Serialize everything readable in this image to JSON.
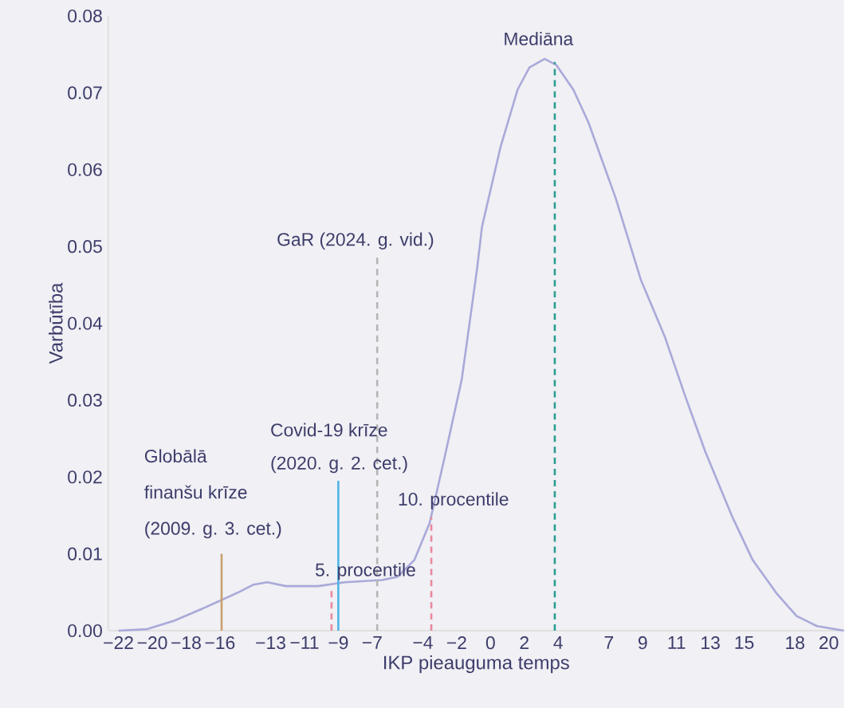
{
  "chart_data": {
    "type": "line",
    "xlabel": "IKP pieauguma temps",
    "ylabel": "Varbūtība",
    "xlim": [
      -22.6,
      20.9
    ],
    "ylim": [
      0,
      0.08
    ],
    "xticks": [
      {
        "value": -22,
        "label": "−22"
      },
      {
        "value": -20,
        "label": "−20"
      },
      {
        "value": -18,
        "label": "−18"
      },
      {
        "value": -16,
        "label": "−16"
      },
      {
        "value": -13,
        "label": "−13"
      },
      {
        "value": -11,
        "label": "−11"
      },
      {
        "value": -9,
        "label": "−9"
      },
      {
        "value": -7,
        "label": "−7"
      },
      {
        "value": -4,
        "label": "−4"
      },
      {
        "value": -2,
        "label": "−2"
      },
      0,
      2,
      4,
      7,
      9,
      11,
      13,
      15,
      18,
      20
    ],
    "yticks": [
      {
        "value": 0,
        "label": "0.00"
      },
      {
        "value": 0.01,
        "label": "0.01"
      },
      {
        "value": 0.02,
        "label": "0.02"
      },
      {
        "value": 0.03,
        "label": "0.03"
      },
      {
        "value": 0.04,
        "label": "0.04"
      },
      {
        "value": 0.05,
        "label": "0.05"
      },
      {
        "value": 0.06,
        "label": "0.06"
      },
      {
        "value": 0.07,
        "label": "0.07"
      },
      {
        "value": 0.08,
        "label": "0.08"
      }
    ],
    "grid": false,
    "marker": "none",
    "series": [
      {
        "color": "#a9a9d9",
        "line_style": "solid",
        "x": [
          -22,
          -20.3,
          -18.7,
          -17.1,
          -15.9,
          -14.9,
          -14.0,
          -13.2,
          -12.1,
          -10.2,
          -8.6,
          -6.4,
          -5.5,
          -4.5,
          -3.6,
          -2.7,
          -1.7,
          -0.8,
          -0.5,
          0.6,
          1.6,
          2.3,
          3.2,
          3.9,
          4.9,
          5.8,
          7.4,
          8.9,
          10.3,
          11.5,
          12.7,
          14.3,
          15.5,
          16.9,
          18.1,
          19.3,
          20.9
        ],
        "values": [
          0,
          0.0002,
          0.0013,
          0.0028,
          0.004,
          0.005,
          0.006,
          0.0063,
          0.0058,
          0.0058,
          0.0063,
          0.0066,
          0.007,
          0.0092,
          0.014,
          0.0227,
          0.0327,
          0.047,
          0.0526,
          0.063,
          0.0704,
          0.0733,
          0.0744,
          0.0736,
          0.0704,
          0.0661,
          0.0563,
          0.0456,
          0.0383,
          0.0306,
          0.0233,
          0.0148,
          0.0092,
          0.0049,
          0.0019,
          0.0006,
          0
        ]
      },
      {
        "color": "#c9a06c",
        "line_style": "solid",
        "x": [
          -15.9,
          -15.9
        ],
        "values": [
          0,
          0.01
        ]
      },
      {
        "color": "#e8899e",
        "line_style": "dashed",
        "x": [
          -9.4,
          -9.4
        ],
        "values": [
          0,
          0.0056
        ]
      },
      {
        "color": "#4fb3e6",
        "line_style": "solid",
        "x": [
          -9.0,
          -9.0
        ],
        "values": [
          0,
          0.0195
        ]
      },
      {
        "color": "#b5b5b5",
        "line_style": "dashed",
        "x": [
          -6.7,
          -6.7
        ],
        "values": [
          0,
          0.049
        ]
      },
      {
        "color": "#e8899e",
        "line_style": "dashed",
        "x": [
          -3.5,
          -3.5
        ],
        "values": [
          0,
          0.0148
        ]
      },
      {
        "color": "#2a9d8f",
        "line_style": "dashed",
        "x": [
          3.8,
          3.8
        ],
        "values": [
          0,
          0.074
        ]
      }
    ],
    "annotations": [
      "Mediāna",
      "GaR (2024. g. vid.)",
      "Covid-19 krīze",
      "(2020. g. 2. cet.)",
      "Globālā",
      "finanšu krīze",
      "(2009. g. 3. cet.)",
      "10. procentile",
      "5. procentile"
    ]
  }
}
